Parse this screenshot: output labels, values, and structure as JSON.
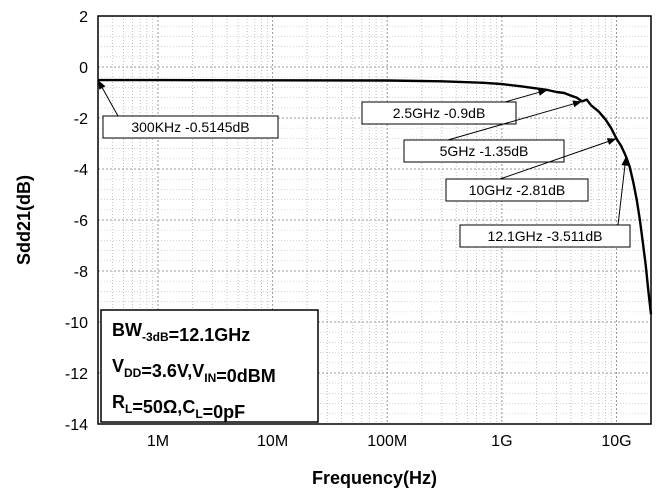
{
  "chart_data": {
    "type": "line",
    "title": "",
    "xlabel": "Frequency(Hz)",
    "ylabel": "Sdd21(dB)",
    "xscale": "log",
    "xlim": [
      300000,
      20000000000
    ],
    "ylim": [
      -14,
      2
    ],
    "grid": true,
    "x_ticks": [
      {
        "value": 1000000,
        "label": "1M"
      },
      {
        "value": 10000000,
        "label": "10M"
      },
      {
        "value": 100000000,
        "label": "100M"
      },
      {
        "value": 1000000000,
        "label": "1G"
      },
      {
        "value": 10000000000,
        "label": "10G"
      }
    ],
    "y_ticks": [
      2,
      0,
      -2,
      -4,
      -6,
      -8,
      -10,
      -12,
      -14
    ],
    "series": [
      {
        "color": "#000000",
        "x": [
          300000,
          1000000,
          10000000,
          100000000,
          300000000,
          700000000,
          1000000000,
          1500000000,
          2000000000,
          2500000000,
          3000000000,
          3500000000,
          4000000000,
          4500000000,
          5000000000,
          5500000000,
          6000000000,
          7000000000,
          8000000000,
          9000000000,
          10000000000,
          11000000000,
          12100000000,
          13000000000,
          14000000000,
          15000000000,
          16000000000,
          17000000000,
          18000000000,
          19000000000,
          20000000000
        ],
        "y": [
          -0.5145,
          -0.515,
          -0.52,
          -0.53,
          -0.56,
          -0.62,
          -0.67,
          -0.76,
          -0.84,
          -0.9,
          -0.98,
          -1.02,
          -1.12,
          -1.2,
          -1.35,
          -1.28,
          -1.5,
          -1.75,
          -2.05,
          -2.4,
          -2.81,
          -3.1,
          -3.511,
          -3.9,
          -4.5,
          -5.2,
          -6.0,
          -6.9,
          -7.8,
          -8.8,
          -9.7
        ]
      }
    ],
    "annotations": [
      {
        "text": "300KHz -0.5145dB",
        "x": 300000,
        "y": -0.5145
      },
      {
        "text": "2.5GHz -0.9dB",
        "x": 2500000000,
        "y": -0.9
      },
      {
        "text": "5GHz -1.35dB",
        "x": 5000000000,
        "y": -1.35
      },
      {
        "text": "10GHz -2.81dB",
        "x": 10000000000,
        "y": -2.81
      },
      {
        "text": "12.1GHz -3.511dB",
        "x": 12100000000,
        "y": -3.511
      }
    ],
    "info_box": [
      {
        "base": "BW",
        "sub": "-3dB",
        "rest": "=12.1GHz"
      },
      {
        "base": "V",
        "sub": "DD",
        "rest": "=3.6V,",
        "base2": "V",
        "sub2": "IN",
        "rest2": "=0dBM"
      },
      {
        "base": "R",
        "sub": "L",
        "rest": "=50Ω,",
        "base2": "C",
        "sub2": "L",
        "rest2": "=0pF"
      }
    ]
  }
}
